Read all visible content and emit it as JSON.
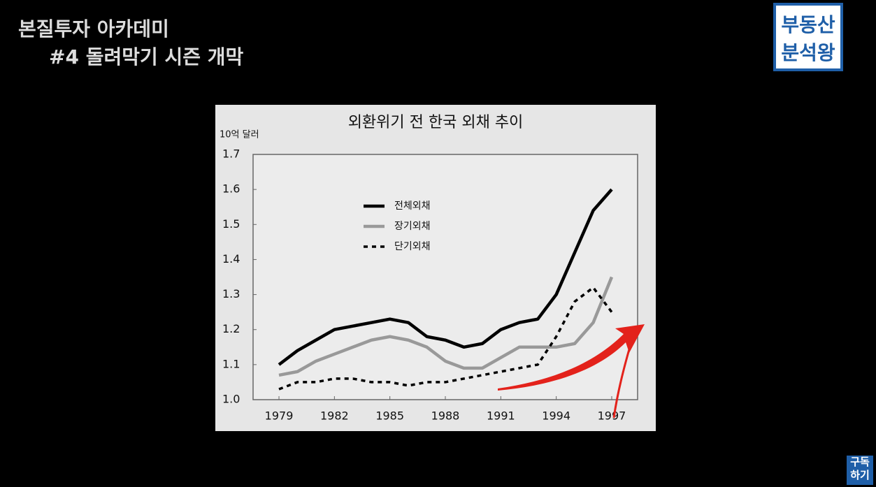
{
  "header": {
    "title": "본질투자 아카데미",
    "subtitle": "#4 돌려막기 시즌 개막",
    "logo": [
      "부동산",
      "분석왕"
    ],
    "subscribe": [
      "구독",
      "하기"
    ]
  },
  "chart_data": {
    "type": "line",
    "title": "외환위기 전 한국 외채 추이",
    "y_label": "10억 달러",
    "x": [
      1979,
      1980,
      1981,
      1982,
      1983,
      1984,
      1985,
      1986,
      1987,
      1988,
      1989,
      1990,
      1991,
      1992,
      1993,
      1994,
      1995,
      1996,
      1997
    ],
    "series": [
      {
        "name": "전체외채",
        "color": "#000000",
        "values": [
          1.1,
          1.14,
          1.17,
          1.2,
          1.21,
          1.22,
          1.23,
          1.22,
          1.18,
          1.17,
          1.15,
          1.16,
          1.2,
          1.22,
          1.23,
          1.3,
          1.42,
          1.54,
          1.6
        ]
      },
      {
        "name": "장기외채",
        "color": "#999999",
        "values": [
          1.07,
          1.08,
          1.11,
          1.13,
          1.15,
          1.17,
          1.18,
          1.17,
          1.15,
          1.11,
          1.09,
          1.09,
          1.12,
          1.15,
          1.15,
          1.15,
          1.16,
          1.22,
          1.35
        ]
      },
      {
        "name": "단기외채",
        "color": "#000000",
        "dashed": true,
        "values": [
          1.03,
          1.05,
          1.05,
          1.06,
          1.06,
          1.05,
          1.05,
          1.04,
          1.05,
          1.05,
          1.06,
          1.07,
          1.08,
          1.09,
          1.1,
          1.18,
          1.28,
          1.32,
          1.25
        ]
      }
    ],
    "xlim": [
      1977.6,
      1998.4
    ],
    "xticks": [
      1979,
      1982,
      1985,
      1988,
      1991,
      1994,
      1997
    ],
    "ylim": [
      1.0,
      1.7
    ],
    "yticks": [
      {
        "value": 1,
        "label": "1.0"
      },
      1.1,
      1.2,
      1.3,
      1.4,
      1.5,
      1.6,
      1.7
    ]
  }
}
